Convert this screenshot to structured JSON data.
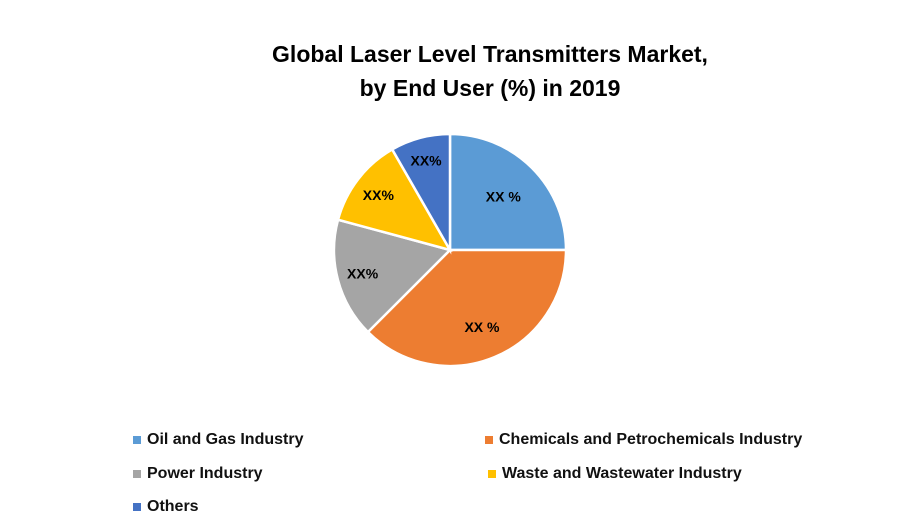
{
  "chart_data": {
    "type": "pie",
    "title_line1": "Global Laser Level Transmitters Market,",
    "title_line2": "by End User (%) in 2019",
    "categories": [
      "Oil and Gas Industry",
      "Chemicals and Petrochemicals Industry",
      "Power Industry",
      "Waste and Wastewater Industry",
      "Others"
    ],
    "values": [
      25,
      37.5,
      16.7,
      12.5,
      8.3
    ],
    "data_labels": [
      "XX %",
      "XX %",
      "XX%",
      "XX%",
      "XX%"
    ],
    "colors": [
      "#5B9BD5",
      "#ED7D31",
      "#A5A5A5",
      "#FFC000",
      "#4472C4"
    ],
    "legend_placement": "bottom"
  }
}
